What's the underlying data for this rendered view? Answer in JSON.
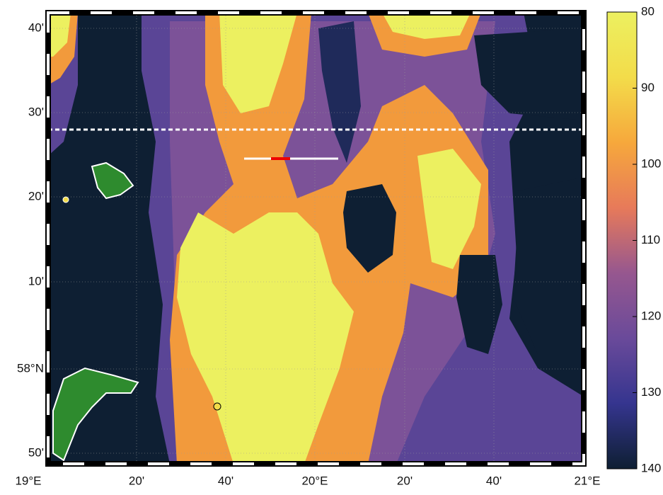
{
  "map": {
    "lat_labels": [
      "40'",
      "30'",
      "20'",
      "10'",
      "58°N",
      "50'"
    ],
    "lon_labels": [
      "19°E",
      "20'",
      "40'",
      "20°E",
      "20'",
      "40'",
      "21°E"
    ],
    "colorbar": {
      "lim": [
        80,
        140
      ],
      "ticks": [
        80,
        90,
        100,
        110,
        120,
        130,
        140
      ],
      "colormap": [
        "#0e1f33",
        "#35358f",
        "#6a4a9a",
        "#96578f",
        "#e77a5a",
        "#f6a83c",
        "#f3dc4a",
        "#ecf060"
      ]
    }
  }
}
